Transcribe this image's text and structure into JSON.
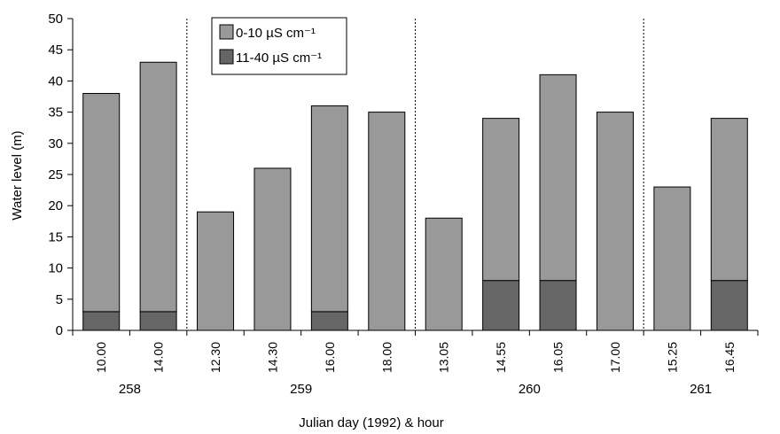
{
  "chart_data": {
    "type": "bar",
    "stacked": true,
    "title": "",
    "xlabel": "Julian day (1992) & hour",
    "ylabel": "Water level (m)",
    "ylim": [
      0,
      50
    ],
    "yticks": [
      0,
      5,
      10,
      15,
      20,
      25,
      30,
      35,
      40,
      45,
      50
    ],
    "grid": false,
    "legend_position": "top-center",
    "categories": [
      "10.00",
      "14.00",
      "12.30",
      "14.30",
      "16.00",
      "18.00",
      "13.05",
      "14.55",
      "16.05",
      "17.00",
      "15.25",
      "16.45"
    ],
    "day_groups": [
      {
        "label": "258",
        "count": 2
      },
      {
        "label": "259",
        "count": 4
      },
      {
        "label": "260",
        "count": 4
      },
      {
        "label": "261",
        "count": 2
      }
    ],
    "series": [
      {
        "name": "11-40 µS cm⁻¹",
        "color": "#666666",
        "values": [
          3,
          3,
          0,
          0,
          3,
          0,
          0,
          8,
          8,
          0,
          0,
          8
        ]
      },
      {
        "name": "0-10 µS cm⁻¹",
        "color": "#999999",
        "values": [
          35,
          40,
          19,
          26,
          33,
          35,
          18,
          26,
          33,
          35,
          23,
          26
        ]
      }
    ],
    "legend": [
      {
        "label": "0-10 µS cm⁻¹",
        "color": "#999999"
      },
      {
        "label": "11-40 µS cm⁻¹",
        "color": "#666666"
      }
    ]
  }
}
